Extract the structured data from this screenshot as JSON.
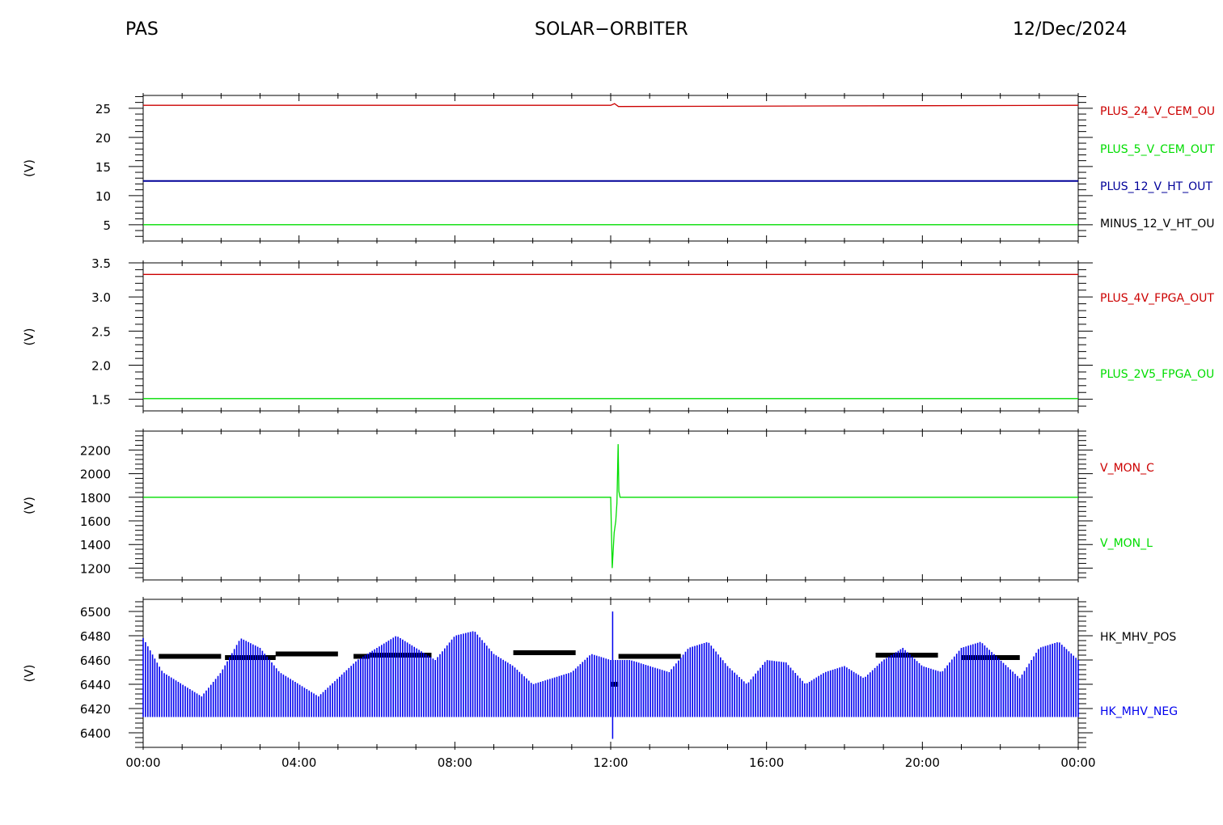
{
  "header": {
    "instrument": "PAS",
    "mission": "SOLAR−ORBITER",
    "date": "12/Dec/2024"
  },
  "chart_data": [
    {
      "type": "line",
      "xlabel": "",
      "ylabel": "(V)",
      "xlim": [
        0,
        24
      ],
      "ylim": [
        2.2,
        27.2
      ],
      "yticks": [
        5,
        10,
        15,
        20,
        25
      ],
      "yticklabels": [
        "5",
        "10",
        "15",
        "20",
        "25"
      ],
      "series": [
        {
          "name": "PLUS_24_V_CEM_OU",
          "color": "#cc0000",
          "x": [
            0,
            12,
            12.1,
            12.2,
            24
          ],
          "values": [
            25.5,
            25.5,
            25.8,
            25.3,
            25.5
          ]
        },
        {
          "name": "PLUS_5_V_CEM_OUT",
          "color": "#00dd00",
          "x": [
            0,
            24
          ],
          "values": [
            5,
            5
          ]
        },
        {
          "name": "PLUS_12_V_HT_OUT",
          "color": "#000099",
          "x": [
            0,
            24
          ],
          "values": [
            12.5,
            12.5
          ]
        },
        {
          "name": "MINUS_12_V_HT_OU",
          "color": "#000000",
          "x": [],
          "values": []
        }
      ]
    },
    {
      "type": "line",
      "xlabel": "",
      "ylabel": "(V)",
      "xlim": [
        0,
        24
      ],
      "ylim": [
        1.33,
        3.5
      ],
      "yticks": [
        1.5,
        2.0,
        2.5,
        3.0,
        3.5
      ],
      "yticklabels": [
        "1.5",
        "2.0",
        "2.5",
        "3.0",
        "3.5"
      ],
      "series": [
        {
          "name": "PLUS_4V_FPGA_OUT",
          "color": "#cc0000",
          "x": [
            0,
            24
          ],
          "values": [
            3.33,
            3.33
          ]
        },
        {
          "name": "PLUS_2V5_FPGA_OU",
          "color": "#00dd00",
          "x": [
            0,
            24
          ],
          "values": [
            1.51,
            1.51
          ]
        }
      ]
    },
    {
      "type": "line",
      "xlabel": "",
      "ylabel": "(V)",
      "xlim": [
        0,
        24
      ],
      "ylim": [
        1100,
        2360
      ],
      "yticks": [
        1200,
        1400,
        1600,
        1800,
        2000,
        2200
      ],
      "yticklabels": [
        "1200",
        "1400",
        "1600",
        "1800",
        "2000",
        "2200"
      ],
      "series": [
        {
          "name": "V_MON_C",
          "color": "#cc0000",
          "x": [],
          "values": []
        },
        {
          "name": "V_MON_L",
          "color": "#00dd00",
          "x": [
            0,
            12.0,
            12.04,
            12.09,
            12.13,
            12.16,
            12.19,
            12.21,
            12.24,
            24
          ],
          "values": [
            1800,
            1800,
            1200,
            1500,
            1600,
            1750,
            2250,
            1850,
            1800,
            1800
          ]
        }
      ]
    },
    {
      "type": "line",
      "xlabel": "",
      "ylabel": "(V)",
      "xlim": [
        0,
        24
      ],
      "ylim": [
        6388,
        6510
      ],
      "yticks": [
        6400,
        6420,
        6440,
        6460,
        6480,
        6500
      ],
      "yticklabels": [
        "6400",
        "6420",
        "6440",
        "6460",
        "6480",
        "6500"
      ],
      "xticks": [
        0,
        4,
        8,
        12,
        16,
        20,
        24
      ],
      "xticklabels": [
        "00:00",
        "04:00",
        "08:00",
        "12:00",
        "16:00",
        "20:00",
        "00:00"
      ],
      "series": [
        {
          "name": "HK_MHV_POS",
          "color": "#000000",
          "x": [
            0.4,
            2.1,
            3.4,
            5.4,
            5.8,
            9.5,
            12,
            12.2,
            18.8,
            21.0
          ],
          "values": [
            6463,
            6462,
            6465,
            6463,
            6464,
            6466,
            6440,
            6463,
            6464,
            6462
          ]
        },
        {
          "name": "HK_MHV_NEG",
          "color": "#0000ee",
          "x": [
            0,
            0.5,
            1.0,
            1.5,
            2.0,
            2.5,
            3.0,
            3.5,
            4.0,
            4.5,
            5.0,
            5.5,
            6.0,
            6.5,
            7.0,
            7.5,
            8.0,
            8.5,
            9.0,
            9.5,
            10.0,
            10.5,
            11.0,
            11.5,
            12.0,
            12.5,
            13.0,
            13.5,
            14.0,
            14.5,
            15.0,
            15.5,
            16.0,
            16.5,
            17.0,
            17.5,
            18.0,
            18.5,
            19.0,
            19.5,
            20.0,
            20.5,
            21.0,
            21.5,
            22.0,
            22.5,
            23.0,
            23.5,
            24.0
          ],
          "values": [
            6478,
            6450,
            6440,
            6430,
            6450,
            6478,
            6470,
            6450,
            6440,
            6430,
            6445,
            6460,
            6470,
            6480,
            6470,
            6460,
            6480,
            6484,
            6465,
            6455,
            6440,
            6445,
            6450,
            6465,
            6460,
            6460,
            6455,
            6450,
            6470,
            6475,
            6455,
            6440,
            6460,
            6458,
            6440,
            6450,
            6455,
            6445,
            6460,
            6470,
            6455,
            6450,
            6470,
            6475,
            6460,
            6445,
            6470,
            6475,
            6460
          ],
          "band_low": 6413
        }
      ]
    }
  ]
}
